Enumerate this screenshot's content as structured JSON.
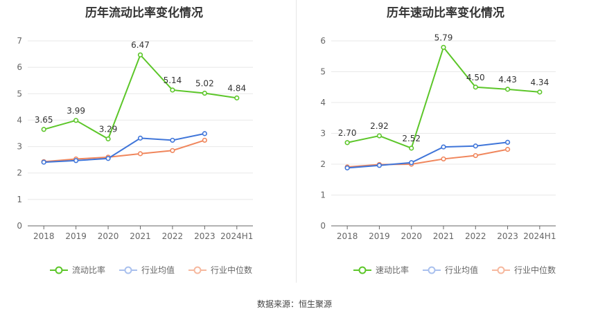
{
  "footer": {
    "source": "数据来源：恒生聚源"
  },
  "chart_data": [
    {
      "type": "line",
      "title": "历年流动比率变化情况",
      "categories": [
        "2018",
        "2019",
        "2020",
        "2021",
        "2022",
        "2023",
        "2024H1"
      ],
      "ylim": [
        0,
        7
      ],
      "yticks": [
        0,
        1,
        2,
        3,
        4,
        5,
        6,
        7
      ],
      "grid": true,
      "legend_position": "bottom",
      "series": [
        {
          "name": "流动比率",
          "color": "#5cc629",
          "values": [
            3.65,
            3.99,
            3.29,
            6.47,
            5.14,
            5.02,
            4.84
          ],
          "labels": [
            "3.65",
            "3.99",
            "3.29",
            "6.47",
            "5.14",
            "5.02",
            "4.84"
          ]
        },
        {
          "name": "行业均值",
          "color": "#3f75d9",
          "values": [
            2.41,
            2.47,
            2.55,
            3.32,
            3.24,
            3.49,
            null
          ]
        },
        {
          "name": "行业中位数",
          "color": "#f0865c",
          "values": [
            2.43,
            2.53,
            2.6,
            2.73,
            2.85,
            3.24,
            null
          ]
        }
      ]
    },
    {
      "type": "line",
      "title": "历年速动比率变化情况",
      "categories": [
        "2018",
        "2019",
        "2020",
        "2021",
        "2022",
        "2023",
        "2024H1"
      ],
      "ylim": [
        0,
        6
      ],
      "yticks": [
        0,
        1,
        2,
        3,
        4,
        5,
        6
      ],
      "grid": true,
      "legend_position": "bottom",
      "series": [
        {
          "name": "速动比率",
          "color": "#5cc629",
          "values": [
            2.7,
            2.92,
            2.52,
            5.79,
            4.5,
            4.43,
            4.34
          ],
          "labels": [
            "2.70",
            "2.92",
            "2.52",
            "5.79",
            "4.50",
            "4.43",
            "4.34"
          ]
        },
        {
          "name": "行业均值",
          "color": "#3f75d9",
          "values": [
            1.88,
            1.96,
            2.05,
            2.56,
            2.59,
            2.71,
            null
          ]
        },
        {
          "name": "行业中位数",
          "color": "#f0865c",
          "values": [
            1.91,
            1.99,
            2.0,
            2.17,
            2.28,
            2.48,
            null
          ]
        }
      ]
    }
  ]
}
